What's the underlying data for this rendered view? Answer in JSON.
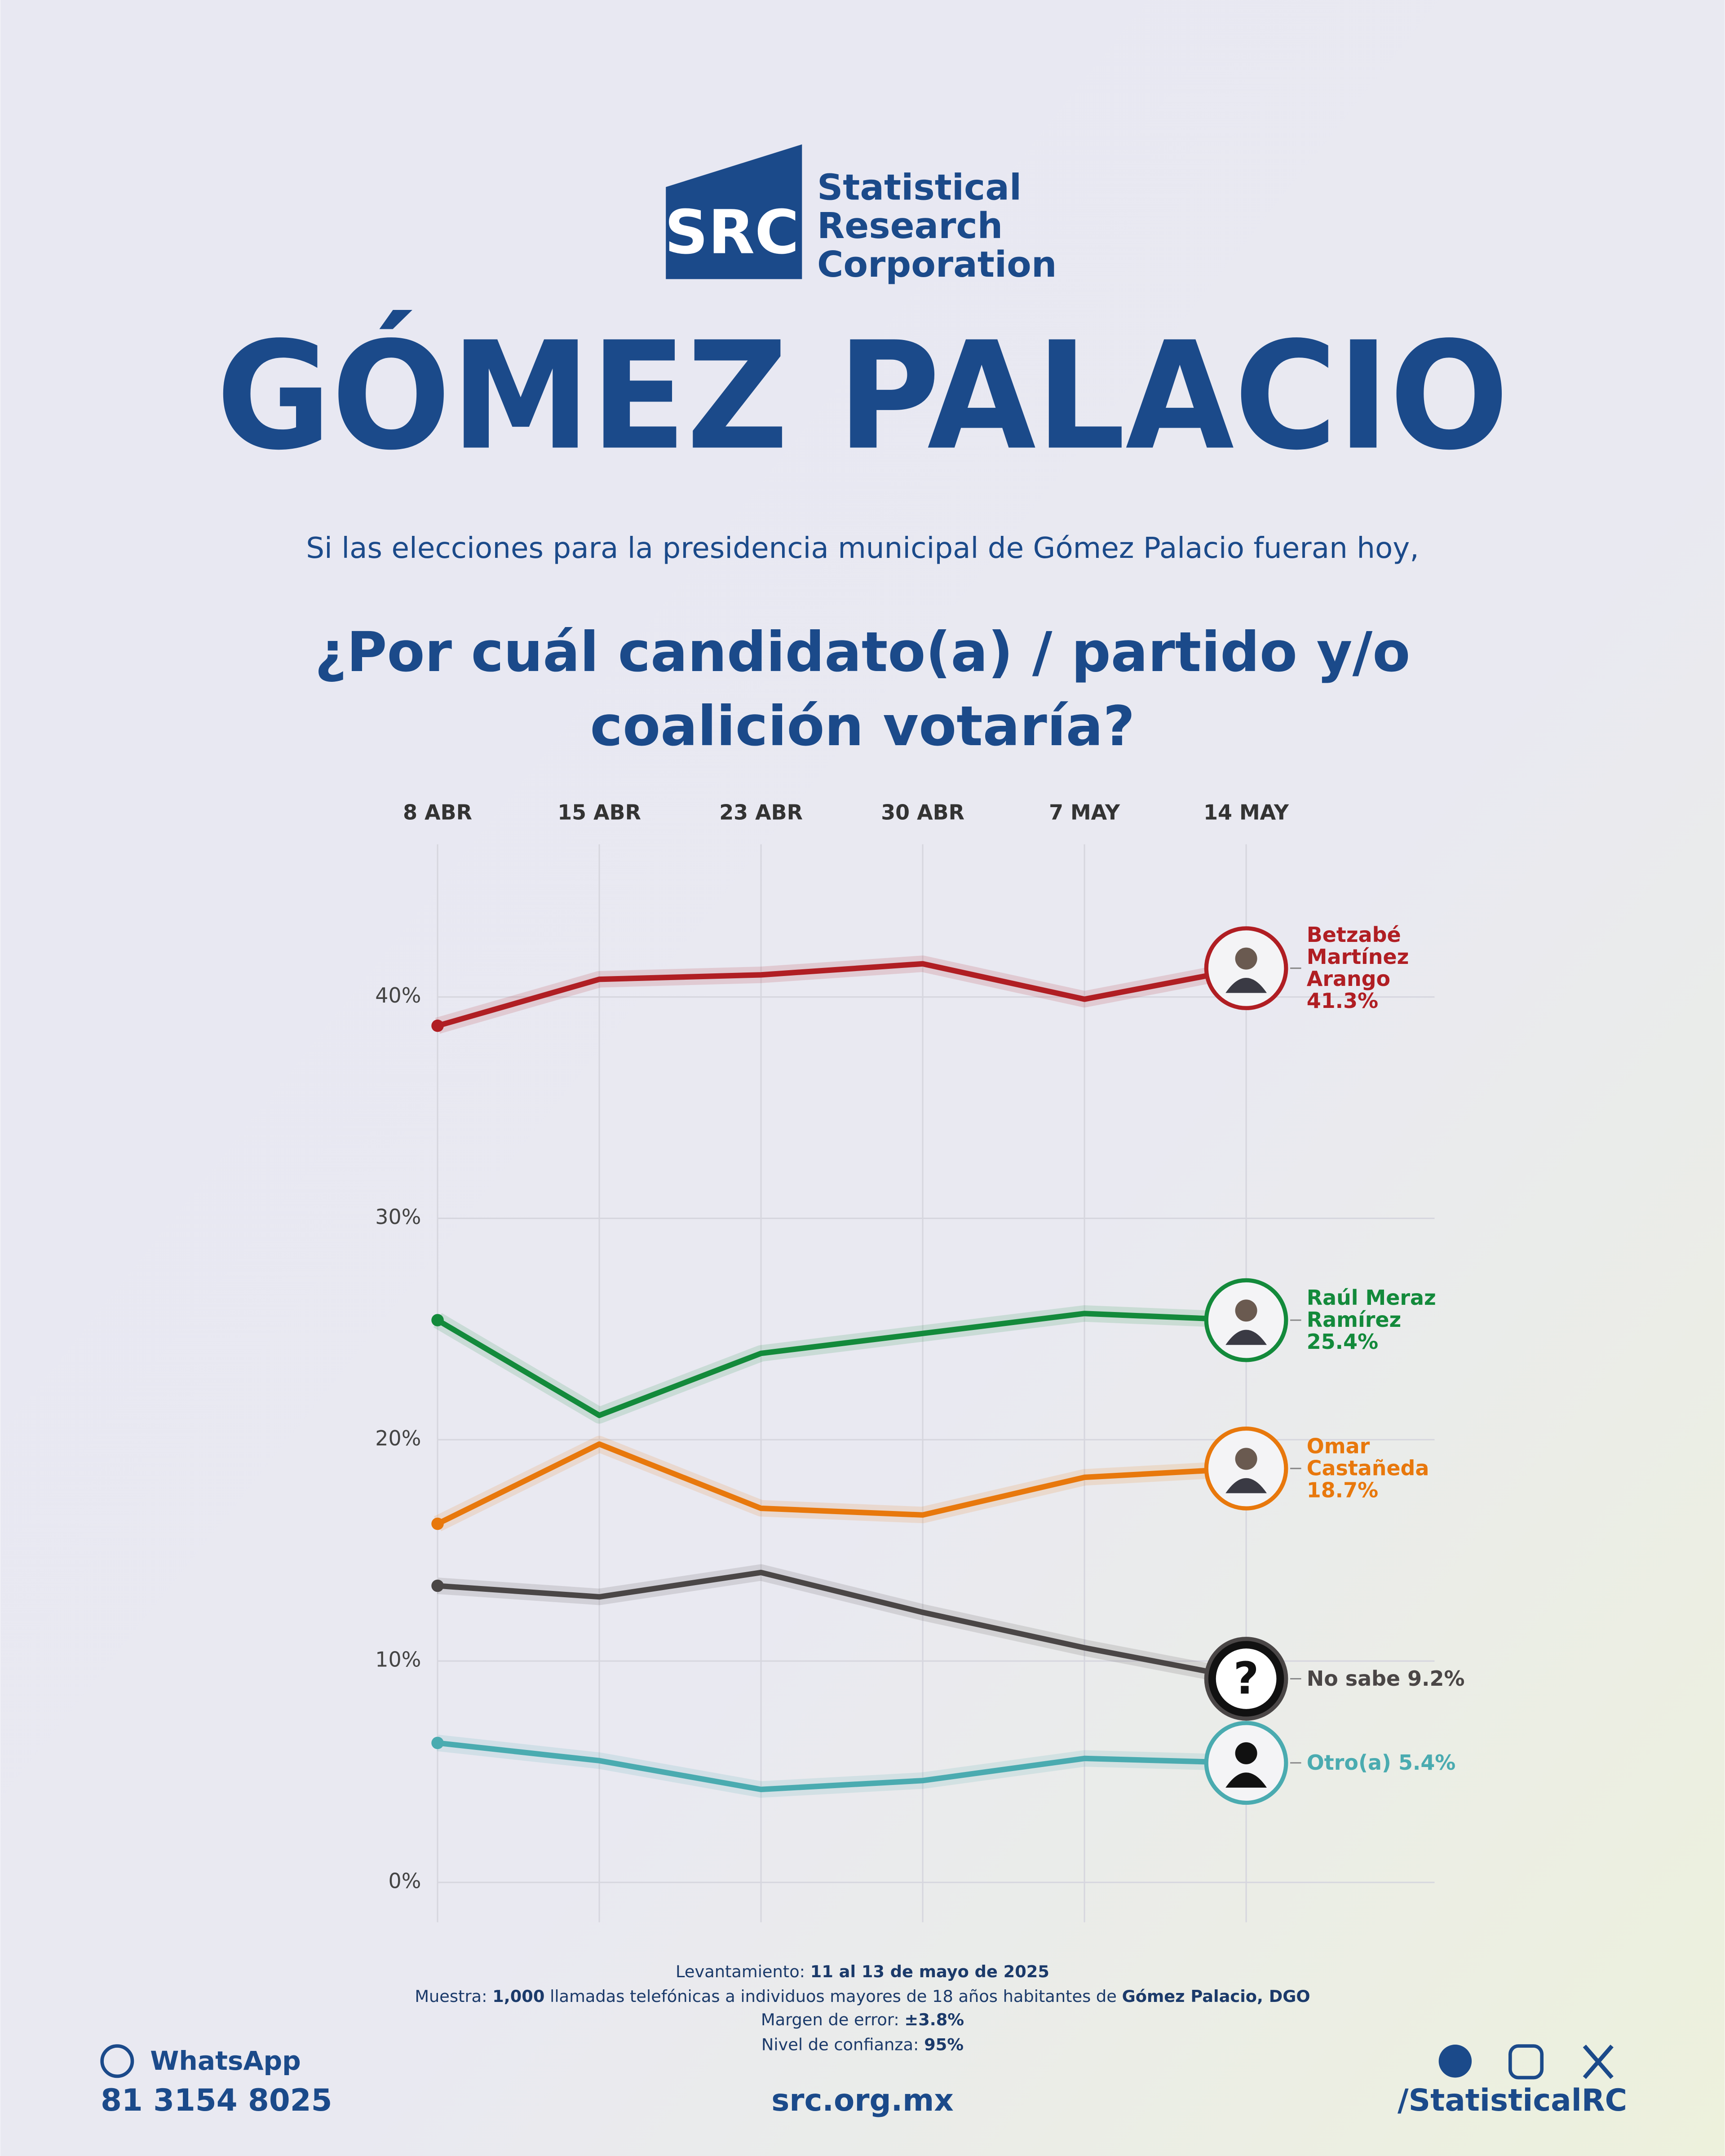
{
  "logo": {
    "mark": "SRC",
    "lines": [
      "Statistical",
      "Research",
      "Corporation"
    ]
  },
  "header": {
    "title": "GÓMEZ PALACIO",
    "intro": "Si las elecciones para la presidencia municipal de Gómez Palacio fueran hoy,",
    "question": "¿Por cuál candidato(a) / partido y/o coalición votaría?"
  },
  "chart_data": {
    "type": "line",
    "categories": [
      "8 ABR",
      "15 ABR",
      "23 ABR",
      "30 ABR",
      "7 MAY",
      "14 MAY"
    ],
    "ylim": [
      -1.8,
      46.9
    ],
    "yticks": [
      {
        "value": 0,
        "label": "0%"
      },
      {
        "value": 10,
        "label": "10%"
      },
      {
        "value": 20,
        "label": "20%"
      },
      {
        "value": 30,
        "label": "30%"
      },
      {
        "value": 40,
        "label": "40%"
      }
    ],
    "grid": true,
    "series": [
      {
        "name": "Betzabé Martínez Arango",
        "color": "#b01e23",
        "values": [
          38.7,
          40.8,
          41.0,
          41.5,
          39.9,
          41.3
        ],
        "value_labels": [
          null,
          null,
          null,
          null,
          null,
          "41.3%"
        ]
      },
      {
        "name": "Raúl Meraz Ramírez",
        "color": "#138a3b",
        "values": [
          25.4,
          21.1,
          23.9,
          24.8,
          25.7,
          25.4
        ],
        "value_labels": [
          null,
          null,
          null,
          null,
          null,
          "25.4%"
        ]
      },
      {
        "name": "Omar Castañeda",
        "color": "#e8780c",
        "values": [
          16.2,
          19.8,
          16.9,
          16.6,
          18.3,
          18.7
        ],
        "value_labels": [
          null,
          null,
          null,
          null,
          null,
          "18.7%"
        ]
      },
      {
        "name": "No sabe",
        "color": "#4a4646",
        "values": [
          13.4,
          12.9,
          14.0,
          12.2,
          10.6,
          9.2
        ],
        "value_labels": [
          null,
          null,
          null,
          null,
          null,
          "9.2%"
        ]
      },
      {
        "name": "Otro(a)",
        "color": "#4aabb0",
        "values": [
          6.3,
          5.5,
          4.2,
          4.6,
          5.6,
          5.4
        ],
        "value_labels": [
          null,
          null,
          null,
          null,
          null,
          "5.4%"
        ]
      }
    ]
  },
  "footer": {
    "levantamiento": {
      "label": "Levantamiento:",
      "value": "11 al 13 de mayo de 2025"
    },
    "muestra": {
      "label": "Muestra:",
      "count": "1,000",
      "text": "llamadas telefónicas a individuos mayores de 18 años habitantes de",
      "place": "Gómez Palacio, DGO"
    },
    "margen": {
      "label": "Margen de error:",
      "value": "±3.8%"
    },
    "nivel": {
      "label": "Nivel de confianza:",
      "value": "95%"
    },
    "whatsapp": "WhatsApp",
    "phone": "81 3154 8025",
    "website": "src.org.mx",
    "social": "/StatisticalRC"
  }
}
